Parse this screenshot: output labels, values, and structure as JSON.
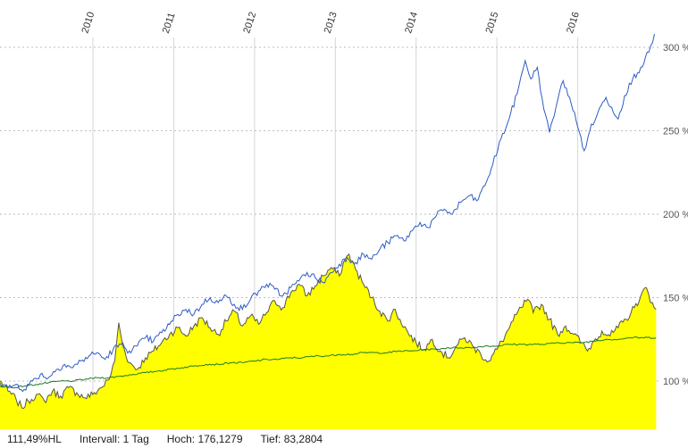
{
  "status_bar": {
    "change": "111,49%HL",
    "interval": "Intervall: 1 Tag",
    "high": "Hoch: 176,1279",
    "low": "Tief: 83,2804"
  },
  "chart_data": {
    "type": "line",
    "title": "",
    "unit": "%",
    "grid": {
      "horizontal": "dotted",
      "vertical": "solid",
      "horizontal_color": "#bdbdbd",
      "vertical_color": "#d6d6d6"
    },
    "x_axis": {
      "labels": [
        "2010",
        "2011",
        "2012",
        "2013",
        "2014",
        "2015",
        "2016"
      ],
      "label_positions": [
        2010,
        2011,
        2012,
        2013,
        2014,
        2015,
        2016
      ],
      "range": [
        2008.85,
        2017.0
      ],
      "label_color": "#333333"
    },
    "y_axis": {
      "ticks": [
        100,
        150,
        200,
        250,
        300
      ],
      "tick_labels": [
        "100 %",
        "150 %",
        "200 %",
        "250 %",
        "300 %"
      ],
      "range": [
        72,
        315
      ],
      "label_color": "#555555"
    },
    "series": [
      {
        "name": "yellow-area",
        "type": "area",
        "fill": "#ffff00",
        "stroke": "#55554a",
        "noise_amp": 2.4,
        "high": 176.1279,
        "low": 83.2804,
        "points": [
          [
            2008.85,
            100
          ],
          [
            2008.95,
            94
          ],
          [
            2009.05,
            89
          ],
          [
            2009.12,
            84
          ],
          [
            2009.2,
            88
          ],
          [
            2009.3,
            92
          ],
          [
            2009.4,
            88
          ],
          [
            2009.5,
            94
          ],
          [
            2009.6,
            91
          ],
          [
            2009.7,
            96
          ],
          [
            2009.8,
            93
          ],
          [
            2009.9,
            90
          ],
          [
            2010.0,
            92
          ],
          [
            2010.1,
            96
          ],
          [
            2010.2,
            101
          ],
          [
            2010.27,
            112
          ],
          [
            2010.32,
            135
          ],
          [
            2010.37,
            121
          ],
          [
            2010.45,
            111
          ],
          [
            2010.55,
            107
          ],
          [
            2010.65,
            114
          ],
          [
            2010.75,
            118
          ],
          [
            2010.85,
            123
          ],
          [
            2010.95,
            128
          ],
          [
            2011.05,
            132
          ],
          [
            2011.15,
            127
          ],
          [
            2011.25,
            133
          ],
          [
            2011.35,
            138
          ],
          [
            2011.45,
            132
          ],
          [
            2011.55,
            128
          ],
          [
            2011.65,
            136
          ],
          [
            2011.75,
            142
          ],
          [
            2011.85,
            133
          ],
          [
            2011.95,
            139
          ],
          [
            2012.05,
            134
          ],
          [
            2012.15,
            141
          ],
          [
            2012.25,
            148
          ],
          [
            2012.35,
            144
          ],
          [
            2012.45,
            153
          ],
          [
            2012.55,
            158
          ],
          [
            2012.65,
            151
          ],
          [
            2012.75,
            157
          ],
          [
            2012.85,
            163
          ],
          [
            2012.95,
            168
          ],
          [
            2013.05,
            163
          ],
          [
            2013.1,
            171
          ],
          [
            2013.17,
            176
          ],
          [
            2013.25,
            167
          ],
          [
            2013.35,
            158
          ],
          [
            2013.45,
            150
          ],
          [
            2013.55,
            142
          ],
          [
            2013.65,
            136
          ],
          [
            2013.72,
            143
          ],
          [
            2013.8,
            137
          ],
          [
            2013.9,
            129
          ],
          [
            2014.0,
            123
          ],
          [
            2014.1,
            119
          ],
          [
            2014.2,
            125
          ],
          [
            2014.3,
            118
          ],
          [
            2014.4,
            114
          ],
          [
            2014.5,
            121
          ],
          [
            2014.6,
            126
          ],
          [
            2014.7,
            121
          ],
          [
            2014.8,
            116
          ],
          [
            2014.9,
            112
          ],
          [
            2015.0,
            119
          ],
          [
            2015.1,
            127
          ],
          [
            2015.2,
            136
          ],
          [
            2015.3,
            144
          ],
          [
            2015.38,
            149
          ],
          [
            2015.45,
            141
          ],
          [
            2015.55,
            146
          ],
          [
            2015.65,
            137
          ],
          [
            2015.75,
            128
          ],
          [
            2015.85,
            133
          ],
          [
            2015.95,
            128
          ],
          [
            2016.05,
            123
          ],
          [
            2016.12,
            118
          ],
          [
            2016.2,
            124
          ],
          [
            2016.3,
            130
          ],
          [
            2016.4,
            127
          ],
          [
            2016.5,
            132
          ],
          [
            2016.6,
            137
          ],
          [
            2016.7,
            144
          ],
          [
            2016.78,
            151
          ],
          [
            2016.85,
            156
          ],
          [
            2016.9,
            147
          ],
          [
            2016.97,
            143
          ]
        ]
      },
      {
        "name": "green-line",
        "type": "line",
        "color": "#1e7d1e",
        "noise_amp": 0.5,
        "points": [
          [
            2008.85,
            97
          ],
          [
            2009.0,
            96
          ],
          [
            2009.15,
            97
          ],
          [
            2009.3,
            98
          ],
          [
            2009.45,
            99
          ],
          [
            2009.6,
            100
          ],
          [
            2009.75,
            100
          ],
          [
            2009.9,
            101
          ],
          [
            2010.05,
            102
          ],
          [
            2010.2,
            102
          ],
          [
            2010.35,
            103
          ],
          [
            2010.5,
            104
          ],
          [
            2010.65,
            105
          ],
          [
            2010.8,
            106
          ],
          [
            2010.95,
            107
          ],
          [
            2011.1,
            108
          ],
          [
            2011.25,
            109
          ],
          [
            2011.4,
            110
          ],
          [
            2011.55,
            110
          ],
          [
            2011.7,
            111
          ],
          [
            2011.85,
            111
          ],
          [
            2012.0,
            112
          ],
          [
            2012.15,
            113
          ],
          [
            2012.3,
            113
          ],
          [
            2012.45,
            114
          ],
          [
            2012.6,
            114
          ],
          [
            2012.75,
            115
          ],
          [
            2012.9,
            115
          ],
          [
            2013.05,
            116
          ],
          [
            2013.2,
            116
          ],
          [
            2013.35,
            117
          ],
          [
            2013.5,
            117
          ],
          [
            2013.65,
            117
          ],
          [
            2013.8,
            118
          ],
          [
            2013.95,
            118
          ],
          [
            2014.1,
            119
          ],
          [
            2014.25,
            119
          ],
          [
            2014.4,
            120
          ],
          [
            2014.55,
            120
          ],
          [
            2014.7,
            120
          ],
          [
            2014.85,
            121
          ],
          [
            2015.0,
            121
          ],
          [
            2015.15,
            122
          ],
          [
            2015.3,
            122
          ],
          [
            2015.45,
            122
          ],
          [
            2015.6,
            122
          ],
          [
            2015.75,
            123
          ],
          [
            2015.9,
            123
          ],
          [
            2016.05,
            123
          ],
          [
            2016.2,
            124
          ],
          [
            2016.35,
            125
          ],
          [
            2016.5,
            125
          ],
          [
            2016.65,
            126
          ],
          [
            2016.8,
            126
          ],
          [
            2016.97,
            126
          ]
        ]
      },
      {
        "name": "blue-line",
        "type": "line",
        "color": "#2e5cc5",
        "noise_amp": 2.0,
        "points": [
          [
            2008.85,
            99
          ],
          [
            2008.95,
            96
          ],
          [
            2009.05,
            98
          ],
          [
            2009.15,
            95
          ],
          [
            2009.25,
            100
          ],
          [
            2009.35,
            104
          ],
          [
            2009.45,
            102
          ],
          [
            2009.55,
            107
          ],
          [
            2009.65,
            110
          ],
          [
            2009.75,
            108
          ],
          [
            2009.85,
            112
          ],
          [
            2009.95,
            115
          ],
          [
            2010.05,
            117
          ],
          [
            2010.15,
            113
          ],
          [
            2010.25,
            119
          ],
          [
            2010.35,
            122
          ],
          [
            2010.45,
            118
          ],
          [
            2010.55,
            121
          ],
          [
            2010.65,
            126
          ],
          [
            2010.75,
            124
          ],
          [
            2010.85,
            129
          ],
          [
            2010.95,
            134
          ],
          [
            2011.05,
            140
          ],
          [
            2011.15,
            143
          ],
          [
            2011.25,
            140
          ],
          [
            2011.35,
            146
          ],
          [
            2011.45,
            150
          ],
          [
            2011.55,
            147
          ],
          [
            2011.65,
            151
          ],
          [
            2011.75,
            146
          ],
          [
            2011.85,
            143
          ],
          [
            2011.95,
            149
          ],
          [
            2012.05,
            154
          ],
          [
            2012.15,
            158
          ],
          [
            2012.25,
            155
          ],
          [
            2012.35,
            151
          ],
          [
            2012.45,
            156
          ],
          [
            2012.55,
            160
          ],
          [
            2012.65,
            165
          ],
          [
            2012.75,
            162
          ],
          [
            2012.85,
            159
          ],
          [
            2012.95,
            165
          ],
          [
            2013.05,
            170
          ],
          [
            2013.15,
            174
          ],
          [
            2013.25,
            171
          ],
          [
            2013.35,
            176
          ],
          [
            2013.45,
            173
          ],
          [
            2013.55,
            179
          ],
          [
            2013.65,
            183
          ],
          [
            2013.75,
            187
          ],
          [
            2013.85,
            184
          ],
          [
            2013.95,
            190
          ],
          [
            2014.05,
            195
          ],
          [
            2014.15,
            192
          ],
          [
            2014.25,
            199
          ],
          [
            2014.35,
            203
          ],
          [
            2014.45,
            200
          ],
          [
            2014.55,
            207
          ],
          [
            2014.65,
            211
          ],
          [
            2014.75,
            208
          ],
          [
            2014.85,
            217
          ],
          [
            2014.95,
            230
          ],
          [
            2015.05,
            245
          ],
          [
            2015.15,
            257
          ],
          [
            2015.25,
            272
          ],
          [
            2015.3,
            283
          ],
          [
            2015.35,
            292
          ],
          [
            2015.42,
            281
          ],
          [
            2015.5,
            288
          ],
          [
            2015.58,
            263
          ],
          [
            2015.65,
            249
          ],
          [
            2015.75,
            268
          ],
          [
            2015.82,
            280
          ],
          [
            2015.9,
            270
          ],
          [
            2015.98,
            256
          ],
          [
            2016.08,
            238
          ],
          [
            2016.15,
            250
          ],
          [
            2016.25,
            261
          ],
          [
            2016.35,
            270
          ],
          [
            2016.42,
            264
          ],
          [
            2016.5,
            257
          ],
          [
            2016.58,
            271
          ],
          [
            2016.68,
            281
          ],
          [
            2016.78,
            288
          ],
          [
            2016.88,
            297
          ],
          [
            2016.95,
            308
          ]
        ]
      }
    ]
  }
}
